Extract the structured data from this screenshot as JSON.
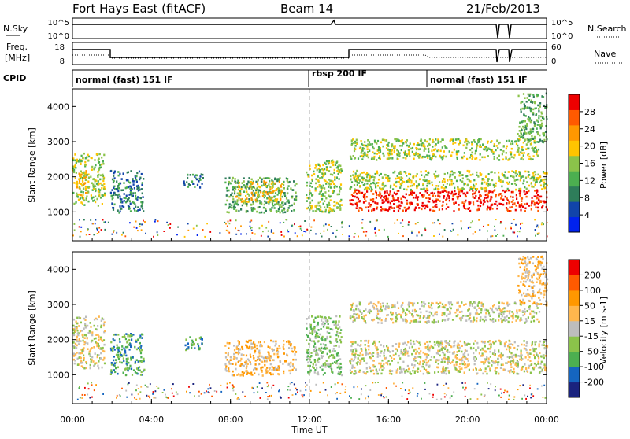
{
  "header": {
    "station": "Fort Hays East (fitACF)",
    "beam": "Beam 14",
    "date": "21/Feb/2013"
  },
  "status_panels": {
    "nsky": {
      "label": "N.Sky",
      "ticks": [
        "10^5",
        "10^0"
      ],
      "right_label": "N.Search",
      "right_ticks": [
        "10^5",
        "10^0"
      ]
    },
    "freq": {
      "label_line1": "Freq.",
      "label_line2": "[MHz]",
      "ticks": [
        "18",
        "8"
      ],
      "right_label": "Nave",
      "right_ticks": [
        "60",
        "0"
      ]
    },
    "cpid": {
      "label": "CPID",
      "programs": [
        {
          "name": "normal (fast) 151 IF",
          "start_h": 0,
          "end_h": 12
        },
        {
          "name": "rbsp 200 IF",
          "start_h": 12,
          "end_h": 18
        },
        {
          "name": "normal (fast) 151 IF",
          "start_h": 18,
          "end_h": 24
        }
      ]
    }
  },
  "chart_data": [
    {
      "type": "heatmap",
      "name": "power",
      "ylabel": "Slant Range [km]",
      "ylim": [
        180,
        4500
      ],
      "yticks": [
        1000,
        2000,
        3000,
        4000
      ],
      "colorbar_label": "Power [dB]",
      "colorbar_ticks": [
        "28",
        "24",
        "20",
        "16",
        "12",
        "8",
        "4"
      ],
      "colors": [
        "#0022ee",
        "#1144aa",
        "#2e7d5a",
        "#4caf50",
        "#8bc34a",
        "#ffc400",
        "#ff9800",
        "#ff5a00",
        "#ee0000"
      ],
      "regions": [
        {
          "x": [
            0.0,
            1.6
          ],
          "y": [
            1200,
            2700
          ],
          "level": 4
        },
        {
          "x": [
            0.1,
            0.7
          ],
          "y": [
            1500,
            2200
          ],
          "level": 5
        },
        {
          "x": [
            1.9,
            3.6
          ],
          "y": [
            1000,
            2200
          ],
          "level": 2
        },
        {
          "x": [
            5.6,
            6.6
          ],
          "y": [
            1700,
            2100
          ],
          "level": 2
        },
        {
          "x": [
            7.7,
            11.3
          ],
          "y": [
            1000,
            2000
          ],
          "level": 3
        },
        {
          "x": [
            8.2,
            10.6
          ],
          "y": [
            1300,
            1900
          ],
          "level": 5
        },
        {
          "x": [
            11.8,
            13.6
          ],
          "y": [
            1000,
            2500
          ],
          "level": 4
        },
        {
          "x": [
            14.0,
            24.0
          ],
          "y": [
            1050,
            1650
          ],
          "level": 8
        },
        {
          "x": [
            14.0,
            24.0
          ],
          "y": [
            1650,
            2200
          ],
          "level": 4
        },
        {
          "x": [
            14.0,
            23.6
          ],
          "y": [
            2500,
            3100
          ],
          "level": 4
        },
        {
          "x": [
            22.5,
            24.0
          ],
          "y": [
            3000,
            4400
          ],
          "level": 3
        }
      ]
    },
    {
      "type": "heatmap",
      "name": "velocity",
      "xlabel": "Time UT",
      "ylabel": "Slant Range [km]",
      "ylim": [
        180,
        4500
      ],
      "yticks": [
        1000,
        2000,
        3000,
        4000
      ],
      "xticks": [
        "00:00",
        "04:00",
        "08:00",
        "12:00",
        "16:00",
        "20:00",
        "00:00"
      ],
      "colorbar_label": "Velocity [m s-1]",
      "colorbar_ticks": [
        "200",
        "100",
        "50",
        "15",
        "-15",
        "-50",
        "-100",
        "-200"
      ],
      "colors": [
        "#1a237e",
        "#1565c0",
        "#4caf50",
        "#8bc34a",
        "#bdbdbd",
        "#ffb74d",
        "#ff9800",
        "#ff5a00",
        "#ee0000"
      ],
      "regions": [
        {
          "x": [
            0.0,
            1.6
          ],
          "y": [
            1200,
            2700
          ],
          "level": 4
        },
        {
          "x": [
            1.9,
            3.6
          ],
          "y": [
            1000,
            2200
          ],
          "level": 2
        },
        {
          "x": [
            5.6,
            6.6
          ],
          "y": [
            1700,
            2100
          ],
          "level": 2
        },
        {
          "x": [
            7.7,
            11.3
          ],
          "y": [
            1000,
            2000
          ],
          "level": 5
        },
        {
          "x": [
            11.8,
            13.6
          ],
          "y": [
            1000,
            2700
          ],
          "level": 3
        },
        {
          "x": [
            14.0,
            24.0
          ],
          "y": [
            1050,
            2000
          ],
          "level": 4
        },
        {
          "x": [
            14.0,
            23.6
          ],
          "y": [
            2500,
            3100
          ],
          "level": 4
        },
        {
          "x": [
            22.5,
            24.0
          ],
          "y": [
            3000,
            4400
          ],
          "level": 5
        }
      ]
    }
  ]
}
